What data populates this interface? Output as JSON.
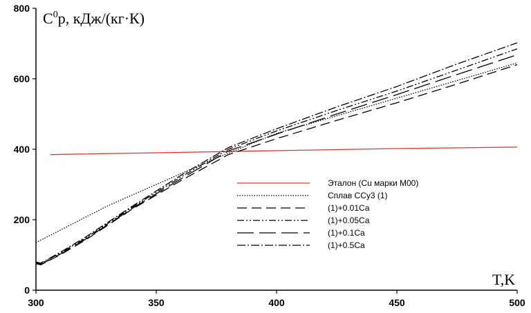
{
  "chart_data": {
    "type": "line",
    "title": "",
    "ylabel_main": "C",
    "ylabel_sup": "0",
    "ylabel_rest": "р, кДж/(кг·К)",
    "xlabel": "T,K",
    "xlim": [
      300,
      500
    ],
    "ylim": [
      0,
      800
    ],
    "x_ticks": [
      "300",
      "350",
      "400",
      "450",
      "500"
    ],
    "y_ticks": [
      "0",
      "200",
      "400",
      "600",
      "800"
    ],
    "grid": false,
    "legend_position": "center-right",
    "series": [
      {
        "name": "Эталон (Cu марки М00)",
        "color": "#e8302a",
        "dash": "",
        "points": [
          [
            306,
            385
          ],
          [
            350,
            390
          ],
          [
            400,
            396
          ],
          [
            450,
            402
          ],
          [
            500,
            406
          ]
        ]
      },
      {
        "name": "Сплав ССу3 (1)",
        "color": "#000000",
        "dash": "1.5,2",
        "points": [
          [
            300,
            135
          ],
          [
            310,
            170
          ],
          [
            320,
            205
          ],
          [
            330,
            240
          ],
          [
            350,
            300
          ],
          [
            375,
            375
          ],
          [
            400,
            445
          ],
          [
            425,
            495
          ],
          [
            450,
            545
          ],
          [
            475,
            595
          ],
          [
            500,
            645
          ]
        ]
      },
      {
        "name": "(1)+0.01Ca",
        "color": "#000000",
        "dash": "14,7",
        "points": [
          [
            300,
            75
          ],
          [
            302,
            72
          ],
          [
            310,
            100
          ],
          [
            320,
            140
          ],
          [
            340,
            230
          ],
          [
            360,
            310
          ],
          [
            380,
            385
          ],
          [
            400,
            430
          ],
          [
            425,
            482
          ],
          [
            450,
            532
          ],
          [
            475,
            585
          ],
          [
            500,
            640
          ]
        ]
      },
      {
        "name": "(1)+0.05Ca",
        "color": "#000000",
        "dash": "10,3,2,3,2,3",
        "points": [
          [
            300,
            78
          ],
          [
            302,
            75
          ],
          [
            310,
            105
          ],
          [
            320,
            145
          ],
          [
            340,
            235
          ],
          [
            360,
            320
          ],
          [
            380,
            400
          ],
          [
            400,
            452
          ],
          [
            425,
            510
          ],
          [
            450,
            565
          ],
          [
            475,
            625
          ],
          [
            500,
            685
          ]
        ]
      },
      {
        "name": "(1)+0.1Ca",
        "color": "#000000",
        "dash": "24,8",
        "points": [
          [
            300,
            76
          ],
          [
            302,
            73
          ],
          [
            310,
            102
          ],
          [
            320,
            142
          ],
          [
            340,
            232
          ],
          [
            360,
            315
          ],
          [
            380,
            395
          ],
          [
            400,
            443
          ],
          [
            425,
            500
          ],
          [
            450,
            555
          ],
          [
            475,
            612
          ],
          [
            500,
            668
          ]
        ]
      },
      {
        "name": "(1)+0.5Ca",
        "color": "#000000",
        "dash": "12,3,2,3",
        "points": [
          [
            300,
            80
          ],
          [
            302,
            77
          ],
          [
            310,
            107
          ],
          [
            320,
            148
          ],
          [
            340,
            238
          ],
          [
            360,
            325
          ],
          [
            380,
            405
          ],
          [
            400,
            458
          ],
          [
            425,
            520
          ],
          [
            450,
            578
          ],
          [
            475,
            642
          ],
          [
            500,
            702
          ]
        ]
      }
    ]
  }
}
